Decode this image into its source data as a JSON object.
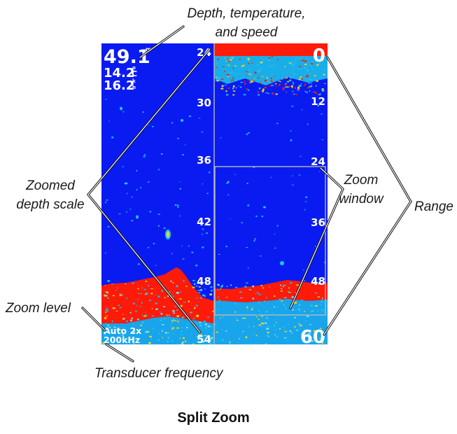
{
  "title": "Split Zoom",
  "callouts": {
    "depth_temp_speed": [
      "Depth, temperature,",
      "and speed"
    ],
    "zoomed_depth_scale": [
      "Zoomed",
      "depth scale"
    ],
    "zoom_window": [
      "Zoom",
      "window"
    ],
    "range": "Range",
    "zoom_level": "Zoom level",
    "transducer_frequency": "Transducer frequency"
  },
  "readouts": {
    "depth": "49.1",
    "depth_unit": "m",
    "temperature": "14.2",
    "temperature_unit_top": "o",
    "temperature_unit_bottom": "C",
    "speed": "16.2",
    "speed_unit_top": "k",
    "speed_unit_bottom": "h"
  },
  "zoom_level": "Auto 2x",
  "transducer_frequency": "200kHz",
  "left_scale": [
    "24",
    "30",
    "36",
    "42",
    "48",
    "54"
  ],
  "right_scale": [
    "0",
    "12",
    "24",
    "36",
    "48",
    "60"
  ],
  "colors": {
    "water": "#0a1bf2",
    "bottom_return": "#ff1a0a",
    "clutter": "#1cc8e8",
    "text": "#ffffff"
  }
}
